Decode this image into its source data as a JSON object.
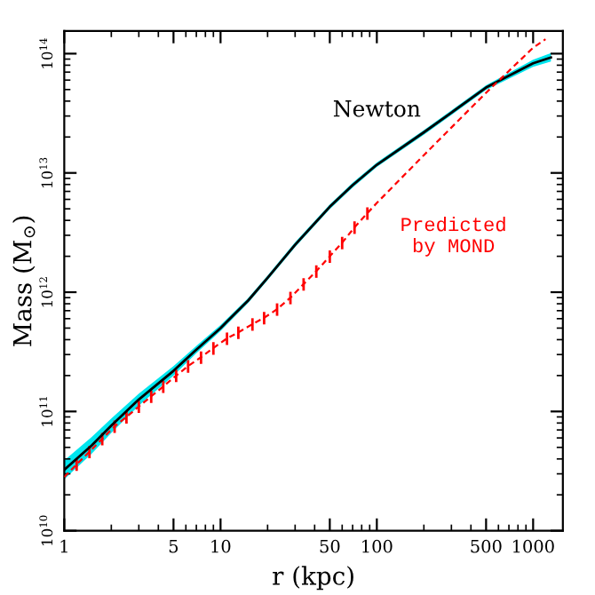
{
  "chart_data": {
    "type": "line",
    "xlabel": "r (kpc)",
    "ylabel": "Mass (M$_{⊙}$)",
    "log": "xy",
    "xlim": [
      1,
      1550
    ],
    "ylim": [
      10000000000.0,
      155000000000000.0
    ],
    "xticks": [
      1,
      5,
      10,
      50,
      100,
      500,
      1000
    ],
    "yticks": [
      {
        "value": 10000000000.0,
        "label": "10$^{10}$"
      },
      {
        "value": 100000000000.0,
        "label": "10$^{11}$"
      },
      {
        "value": 1000000000000.0,
        "label": "10$^{12}$"
      },
      {
        "value": 10000000000000.0,
        "label": "10$^{13}$"
      },
      {
        "value": 100000000000000.0,
        "label": "10$^{14}$"
      }
    ],
    "grid": false,
    "legend": false,
    "series": [
      {
        "name": "Newton",
        "color": "#000000",
        "line_style": "solid",
        "x": [
          1,
          1.5,
          2,
          3,
          5,
          7,
          10,
          15,
          20,
          30,
          50,
          70,
          100,
          200,
          300,
          500,
          1000,
          1300
        ],
        "values": [
          32400000000.0,
          52000000000.0,
          76000000000.0,
          126000000000.0,
          219000000000.0,
          330000000000.0,
          500000000000.0,
          850000000000.0,
          1320000000000.0,
          2500000000000.0,
          5200000000000.0,
          7900000000000.0,
          11700000000000.0,
          21900000000000.0,
          32000000000000.0,
          52000000000000.0,
          83000000000000.0,
          93000000000000.0
        ],
        "lower": [
          27000000000.0,
          44300000000.0,
          66200000000.0,
          112000000000.0,
          200000000000.0,
          308000000000.0,
          472000000000.0,
          812000000000.0,
          1260000000000.0,
          2390000000000.0,
          4970000000000.0,
          7540000000000.0,
          11200000000000.0,
          20900000000000.0,
          30600000000000.0,
          49700000000000.0,
          77400000000000.0,
          85800000000000.0
        ],
        "upper": [
          38900000000.0,
          61100000000.0,
          87200000000.0,
          141000000000.0,
          240000000000.0,
          354000000000.0,
          530000000000.0,
          890000000000.0,
          1380000000000.0,
          2620000000000.0,
          5440000000000.0,
          8270000000000.0,
          12200000000000.0,
          22900000000000.0,
          33500000000000.0,
          54400000000000.0,
          89000000000000.0,
          101000000000000.0
        ]
      },
      {
        "name": "Predicted\nby MOND",
        "color": "#ff0000",
        "line_style": "dashed",
        "x": [
          1,
          1.2,
          1.45,
          1.75,
          2.1,
          2.5,
          3,
          3.6,
          4.3,
          5.2,
          6.2,
          7.5,
          9,
          11,
          13,
          16,
          19,
          23,
          28,
          34,
          41,
          50,
          60,
          72,
          87,
          100,
          200,
          500,
          1000,
          1200
        ],
        "values": [
          28200000000.0,
          36000000000.0,
          46000000000.0,
          59000000000.0,
          75000000000.0,
          90000000000.0,
          110000000000.0,
          134000000000.0,
          162000000000.0,
          200000000000.0,
          240000000000.0,
          285000000000.0,
          340000000000.0,
          410000000000.0,
          460000000000.0,
          540000000000.0,
          610000000000.0,
          720000000000.0,
          900000000000.0,
          1170000000000.0,
          1500000000000.0,
          2000000000000.0,
          2600000000000.0,
          3500000000000.0,
          4600000000000.0,
          5600000000000.0,
          14100000000000.0,
          47000000000000.0,
          112000000000000.0,
          132000000000000.0
        ],
        "errors": [
          null,
          4300000000.0,
          5500000000.0,
          7100000000.0,
          9000000000.0,
          10800000000.0,
          13000000000.0,
          16000000000.0,
          19000000000.0,
          24000000000.0,
          29000000000.0,
          34000000000.0,
          41000000000.0,
          49000000000.0,
          55000000000.0,
          65000000000.0,
          73000000000.0,
          86000000000.0,
          108000000000.0,
          140000000000.0,
          180000000000.0,
          240000000000.0,
          310000000000.0,
          420000000000.0,
          550000000000.0,
          null,
          null,
          null,
          null,
          null
        ]
      }
    ]
  }
}
